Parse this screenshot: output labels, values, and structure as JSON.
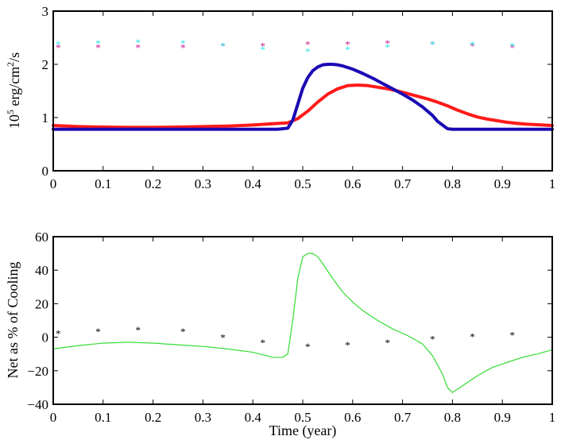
{
  "chart_data": [
    {
      "type": "line",
      "title": "",
      "xlabel": "",
      "ylabel_base": "10",
      "ylabel_exp": "5",
      "ylabel_unit": " erg/cm",
      "ylabel_unit_exp": "2",
      "ylabel_tail": "/s",
      "xlim": [
        0,
        1
      ],
      "ylim": [
        0,
        3
      ],
      "x_ticks": [
        "0",
        "0.1",
        "0.2",
        "0.3",
        "0.4",
        "0.5",
        "0.6",
        "0.7",
        "0.8",
        "0.9",
        "1"
      ],
      "y_ticks": [
        "0",
        "1",
        "2",
        "3"
      ],
      "grid": false,
      "colors": {
        "red": "#ff1a1a",
        "blue": "#1a0ab3",
        "magenta": "#c8198c",
        "cyan": "#2ee6ea"
      },
      "series": [
        {
          "kind": "line",
          "color": "#ff1a1a",
          "x": [
            0.0,
            0.05,
            0.1,
            0.15,
            0.2,
            0.25,
            0.3,
            0.35,
            0.4,
            0.45,
            0.47,
            0.49,
            0.51,
            0.53,
            0.55,
            0.57,
            0.59,
            0.61,
            0.63,
            0.65,
            0.67,
            0.69,
            0.71,
            0.73,
            0.75,
            0.77,
            0.79,
            0.81,
            0.83,
            0.85,
            0.87,
            0.89,
            0.91,
            0.93,
            0.95,
            0.97,
            1.0
          ],
          "y": [
            0.85,
            0.83,
            0.82,
            0.815,
            0.815,
            0.82,
            0.83,
            0.84,
            0.86,
            0.89,
            0.9,
            0.98,
            1.12,
            1.29,
            1.44,
            1.54,
            1.6,
            1.61,
            1.6,
            1.57,
            1.54,
            1.5,
            1.45,
            1.4,
            1.35,
            1.29,
            1.22,
            1.14,
            1.07,
            1.01,
            0.97,
            0.94,
            0.91,
            0.89,
            0.875,
            0.865,
            0.85
          ]
        },
        {
          "kind": "line",
          "color": "#1a0ab3",
          "x": [
            0.0,
            0.1,
            0.2,
            0.3,
            0.4,
            0.45,
            0.47,
            0.48,
            0.49,
            0.5,
            0.51,
            0.52,
            0.53,
            0.54,
            0.55,
            0.56,
            0.57,
            0.58,
            0.6,
            0.62,
            0.64,
            0.66,
            0.68,
            0.7,
            0.72,
            0.74,
            0.76,
            0.77,
            0.78,
            0.79,
            0.8,
            0.9,
            1.0
          ],
          "y": [
            0.78,
            0.78,
            0.78,
            0.78,
            0.78,
            0.78,
            0.8,
            0.95,
            1.25,
            1.55,
            1.75,
            1.88,
            1.95,
            1.99,
            2.0,
            2.0,
            1.99,
            1.97,
            1.91,
            1.83,
            1.74,
            1.64,
            1.54,
            1.44,
            1.33,
            1.2,
            1.04,
            0.93,
            0.86,
            0.79,
            0.78,
            0.78,
            0.78
          ]
        },
        {
          "kind": "points",
          "color": "#c8198c",
          "x": [
            0.01,
            0.09,
            0.17,
            0.26,
            0.34,
            0.42,
            0.51,
            0.59,
            0.67,
            0.76,
            0.84,
            0.92
          ],
          "y": [
            2.32,
            2.32,
            2.32,
            2.32,
            2.35,
            2.35,
            2.38,
            2.38,
            2.4,
            2.38,
            2.35,
            2.32
          ]
        },
        {
          "kind": "points",
          "color": "#2ee6ea",
          "x": [
            0.01,
            0.09,
            0.17,
            0.26,
            0.34,
            0.42,
            0.51,
            0.59,
            0.67,
            0.76,
            0.84,
            0.92
          ],
          "y": [
            2.38,
            2.4,
            2.42,
            2.4,
            2.35,
            2.28,
            2.25,
            2.28,
            2.33,
            2.38,
            2.37,
            2.35
          ]
        }
      ]
    },
    {
      "type": "line",
      "title": "",
      "xlabel": "Time (year)",
      "ylabel": "Net as % of Cooling",
      "xlim": [
        0,
        1
      ],
      "ylim": [
        -40,
        60
      ],
      "x_ticks": [
        "0",
        "0.1",
        "0.2",
        "0.3",
        "0.4",
        "0.5",
        "0.6",
        "0.7",
        "0.8",
        "0.9",
        "1"
      ],
      "y_ticks": [
        "−40",
        "−20",
        "0",
        "20",
        "40",
        "60"
      ],
      "grid": false,
      "colors": {
        "green": "#33dd33",
        "black": "#000000"
      },
      "series": [
        {
          "kind": "line",
          "color": "#33dd33",
          "x": [
            0.0,
            0.05,
            0.1,
            0.15,
            0.2,
            0.25,
            0.3,
            0.35,
            0.4,
            0.44,
            0.46,
            0.47,
            0.48,
            0.49,
            0.5,
            0.51,
            0.52,
            0.53,
            0.54,
            0.56,
            0.58,
            0.6,
            0.62,
            0.65,
            0.68,
            0.71,
            0.74,
            0.76,
            0.78,
            0.79,
            0.8,
            0.82,
            0.85,
            0.88,
            0.91,
            0.94,
            0.97,
            1.0
          ],
          "y": [
            -7,
            -5,
            -3.5,
            -3,
            -3.5,
            -4.5,
            -5.5,
            -7,
            -9,
            -12,
            -12,
            -10,
            10,
            35,
            48,
            50,
            50,
            48,
            44,
            35,
            27,
            21,
            16,
            10,
            5,
            1,
            -4,
            -11,
            -22,
            -30,
            -33,
            -29,
            -23,
            -18,
            -15,
            -12,
            -10,
            -7.5
          ]
        },
        {
          "kind": "points",
          "color": "#000000",
          "x": [
            0.01,
            0.09,
            0.17,
            0.26,
            0.34,
            0.42,
            0.51,
            0.59,
            0.67,
            0.76,
            0.84,
            0.92
          ],
          "y": [
            2.5,
            3.5,
            4.5,
            3.5,
            0,
            -3,
            -5.5,
            -4.5,
            -3,
            -1,
            0.5,
            1.5
          ]
        }
      ]
    }
  ]
}
